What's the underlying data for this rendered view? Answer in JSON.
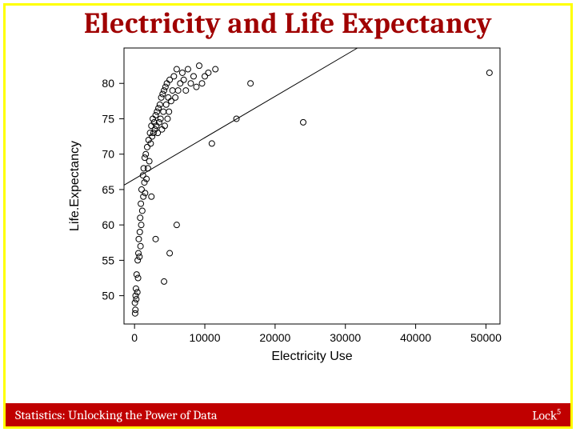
{
  "title": {
    "text": "Electricity and Life Expectancy",
    "color": "#a00000",
    "fontsize_pt": 36
  },
  "footer": {
    "left": "Statistics: Unlocking the Power of Data",
    "brand_base": "Lock",
    "brand_exp": "5",
    "bg": "#c00000",
    "fg": "#ffffff"
  },
  "border_color": "#ffff00",
  "chart": {
    "type": "scatter",
    "xlabel": "Electricity Use",
    "ylabel": "Life.Expectancy",
    "xlim": [
      -1500,
      52000
    ],
    "ylim": [
      46,
      85
    ],
    "xticks": [
      0,
      10000,
      20000,
      30000,
      40000,
      50000
    ],
    "yticks": [
      50,
      55,
      60,
      65,
      70,
      75,
      80
    ],
    "tick_fontsize": 14,
    "label_fontsize": 16,
    "marker": {
      "shape": "circle",
      "radius": 3.5,
      "stroke": "#000000",
      "fill": "none",
      "stroke_width": 1
    },
    "background_color": "#ffffff",
    "line": {
      "x1": 0,
      "y1": 66.5,
      "x2": 30000,
      "y2": 84,
      "color": "#000000",
      "width": 1
    },
    "points": [
      [
        50,
        49.0
      ],
      [
        80,
        47.5
      ],
      [
        120,
        48.0
      ],
      [
        150,
        50.0
      ],
      [
        200,
        51.0
      ],
      [
        250,
        49.5
      ],
      [
        300,
        53.0
      ],
      [
        400,
        50.5
      ],
      [
        450,
        55.0
      ],
      [
        500,
        52.5
      ],
      [
        550,
        56.0
      ],
      [
        600,
        58.0
      ],
      [
        700,
        55.5
      ],
      [
        750,
        59.0
      ],
      [
        800,
        61.0
      ],
      [
        850,
        57.0
      ],
      [
        900,
        63.0
      ],
      [
        950,
        60.0
      ],
      [
        1000,
        65.0
      ],
      [
        1100,
        62.0
      ],
      [
        1200,
        67.0
      ],
      [
        1250,
        64.0
      ],
      [
        1300,
        68.0
      ],
      [
        1400,
        66.0
      ],
      [
        1450,
        69.5
      ],
      [
        1500,
        64.5
      ],
      [
        1600,
        70.0
      ],
      [
        1700,
        66.5
      ],
      [
        1800,
        71.0
      ],
      [
        1900,
        68.0
      ],
      [
        2000,
        72.0
      ],
      [
        2100,
        69.0
      ],
      [
        2200,
        73.0
      ],
      [
        2300,
        71.5
      ],
      [
        2400,
        74.0
      ],
      [
        2500,
        72.5
      ],
      [
        2600,
        75.0
      ],
      [
        2700,
        73.0
      ],
      [
        2800,
        74.5
      ],
      [
        2900,
        73.5
      ],
      [
        3000,
        75.5
      ],
      [
        3100,
        74.0
      ],
      [
        3200,
        76.0
      ],
      [
        3300,
        73.0
      ],
      [
        3400,
        76.5
      ],
      [
        3500,
        74.5
      ],
      [
        3600,
        77.0
      ],
      [
        3700,
        75.0
      ],
      [
        3800,
        78.0
      ],
      [
        3900,
        73.5
      ],
      [
        4000,
        78.5
      ],
      [
        4100,
        76.0
      ],
      [
        4200,
        79.0
      ],
      [
        4300,
        74.0
      ],
      [
        4400,
        79.5
      ],
      [
        4500,
        77.0
      ],
      [
        4600,
        80.0
      ],
      [
        4700,
        75.0
      ],
      [
        4800,
        78.0
      ],
      [
        4900,
        76.0
      ],
      [
        5000,
        80.5
      ],
      [
        5200,
        77.5
      ],
      [
        5400,
        79.0
      ],
      [
        5600,
        81.0
      ],
      [
        5800,
        78.0
      ],
      [
        6000,
        82.0
      ],
      [
        6200,
        79.0
      ],
      [
        6500,
        80.0
      ],
      [
        6800,
        81.5
      ],
      [
        7000,
        80.5
      ],
      [
        7300,
        79.0
      ],
      [
        7600,
        82.0
      ],
      [
        8000,
        80.0
      ],
      [
        8400,
        81.0
      ],
      [
        8800,
        79.5
      ],
      [
        9200,
        82.5
      ],
      [
        9600,
        80.0
      ],
      [
        10000,
        81.0
      ],
      [
        10500,
        81.5
      ],
      [
        11000,
        71.5
      ],
      [
        11500,
        82.0
      ],
      [
        4200,
        52.0
      ],
      [
        5000,
        56.0
      ],
      [
        6000,
        60.0
      ],
      [
        3000,
        58.0
      ],
      [
        2400,
        64.0
      ],
      [
        14500,
        75.0
      ],
      [
        16500,
        80.0
      ],
      [
        24000,
        74.5
      ],
      [
        50500,
        81.5
      ]
    ]
  }
}
